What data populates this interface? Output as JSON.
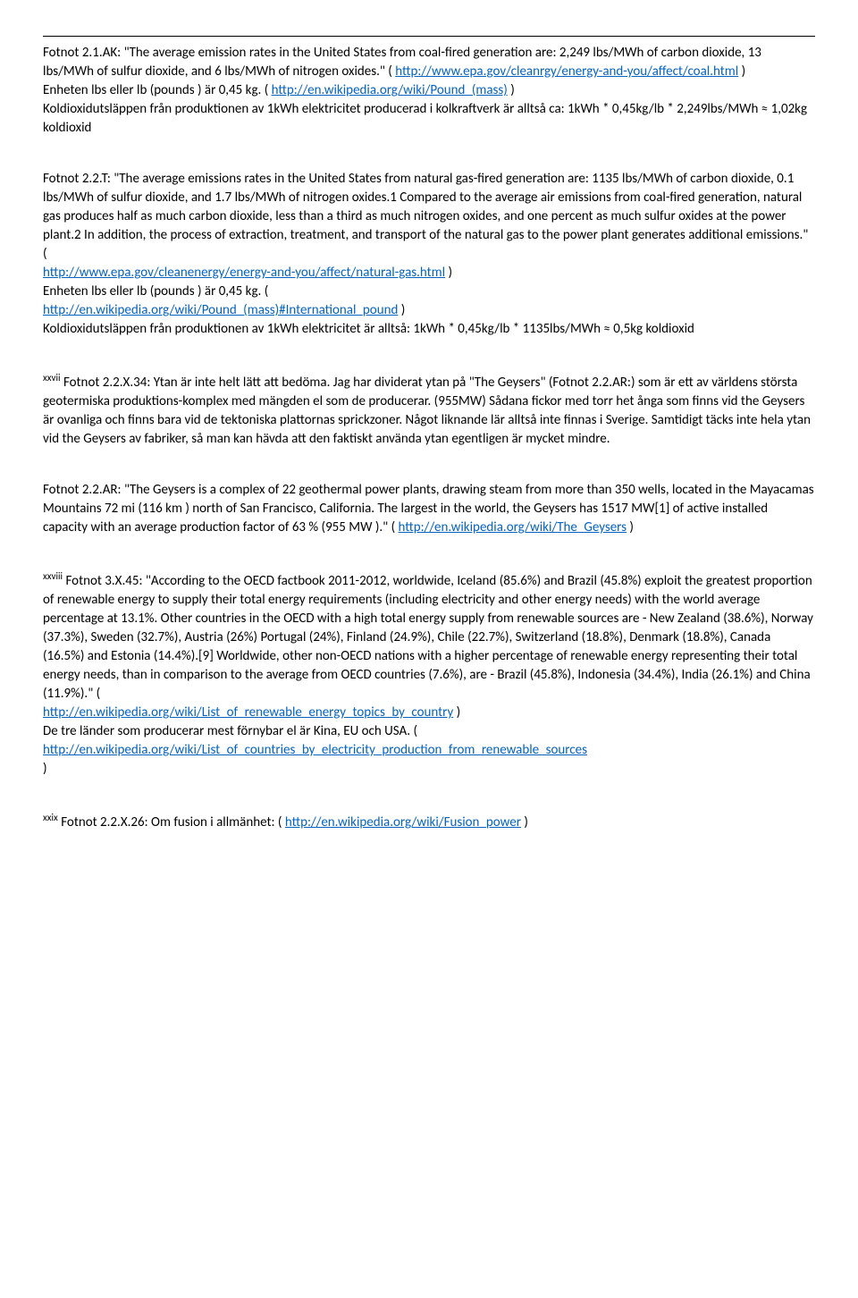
{
  "block1": {
    "label": "Fotnot 2.1.AK:",
    "quote1": "\"The average emission rates in the United States from coal-fired generation are: 2,249 lbs/MWh of carbon dioxide, 13 lbs/MWh of sulfur dioxide, and 6 lbs/MWh of nitrogen oxides.\" ( ",
    "link1_text": "http://www.epa.gov/cleanrgy/energy-and-you/affect/coal.html",
    "after_link1": " )",
    "line2a": "Enheten lbs eller lb (pounds ) är 0,45 kg. ( ",
    "link2_text": "http://en.wikipedia.org/wiki/Pound_(mass)",
    "after_link2": " )",
    "line3": "Koldioxidutsläppen från produktionen av 1kWh elektricitet producerad i kolkraftverk är alltså ca: 1kWh * 0,45kg/lb * 2,249lbs/MWh ≈ 1,02kg koldioxid"
  },
  "block2": {
    "label": "Fotnot 2.2.T:",
    "quote1": "\"The average emissions rates in the United States from natural gas-fired generation are: 1135 lbs/MWh of carbon dioxide, 0.1 lbs/MWh of sulfur dioxide, and 1.7 lbs/MWh of nitrogen oxides.1 Compared to the average air emissions from coal-fired generation, natural gas produces half as much carbon dioxide, less than a third as much nitrogen oxides, and one percent as much sulfur oxides at the power plant.2 In addition, the process of extraction, treatment, and transport of the natural gas to the power plant generates additional emissions.\" ( ",
    "link1_text": "http://www.epa.gov/cleanenergy/energy-and-you/affect/natural-gas.html",
    "after_link1": " )",
    "line2a": "Enheten lbs eller lb (pounds ) är 0,45 kg. (",
    "link2_text": "http://en.wikipedia.org/wiki/Pound_(mass)#International_pound",
    "after_link2": " )",
    "line3": "Koldioxidutsläppen från produktionen av 1kWh elektricitet är alltså: 1kWh * 0,45kg/lb * 1135lbs/MWh ≈ 0,5kg koldioxid"
  },
  "block3": {
    "sup": "xxvii",
    "label": " Fotnot 2.2.X.34:",
    "text": " Ytan är inte helt lätt att bedöma. Jag har dividerat ytan på \"The Geysers\" (Fotnot 2.2.AR:) som är ett av världens största geotermiska produktions-komplex med mängden el som de producerar. (955MW) Sådana fickor med torr het ånga som finns vid the Geysers är ovanliga och finns bara vid de tektoniska plattornas sprickzoner. Något liknande lär alltså inte finnas i Sverige. Samtidigt täcks inte hela ytan vid the Geysers av fabriker, så man kan hävda att den faktiskt använda ytan egentligen är mycket mindre."
  },
  "block4": {
    "label": "Fotnot 2.2.AR:",
    "text1": " \"The Geysers is a complex of 22 geothermal power plants, drawing steam from more than 350 wells, located in the Mayacamas Mountains 72 mi (116 km ) north of San Francisco, California. The largest in the world, the Geysers has 1517 MW[1] of active installed capacity with an average production factor of 63 % (955 MW ).\" ( ",
    "link1_text": "http://en.wikipedia.org/wiki/The_Geysers",
    "after_link1": " )"
  },
  "block5": {
    "sup": "xxviii",
    "label": " Fotnot 3.X.45:",
    "text1": " \"According to the OECD factbook 2011-2012, worldwide, Iceland (85.6%) and Brazil (45.8%) exploit the greatest proportion of renewable energy to supply their total energy requirements (including electricity and other energy needs) with the world average percentage at 13.1%. Other countries in the OECD with a high total energy supply from renewable sources are - New Zealand (38.6%), Norway (37.3%), Sweden (32.7%), Austria (26%) Portugal (24%), Finland (24.9%), Chile (22.7%), Switzerland (18.8%), Denmark (18.8%), Canada (16.5%) and Estonia (14.4%).[9] Worldwide, other non-OECD nations with a higher percentage of renewable energy representing their total energy needs, than in comparison to the average from OECD countries (7.6%), are - Brazil (45.8%), Indonesia (34.4%), India (26.1%) and China (11.9%).\"  ( ",
    "link1_text": "http://en.wikipedia.org/wiki/List_of_renewable_energy_topics_by_country",
    "after_link1": " )",
    "text2a": "De tre länder som producerar mest förnybar el är Kina, EU och USA. (",
    "link2_text": "http://en.wikipedia.org/wiki/List_of_countries_by_electricity_production_from_renewable_sources",
    "after_link2": ")"
  },
  "block6": {
    "sup": "xxix",
    "label": " Fotnot 2.2.X.26:",
    "text": " Om fusion i allmänhet: ( ",
    "link_text": "http://en.wikipedia.org/wiki/Fusion_power",
    "after_link": " )"
  }
}
